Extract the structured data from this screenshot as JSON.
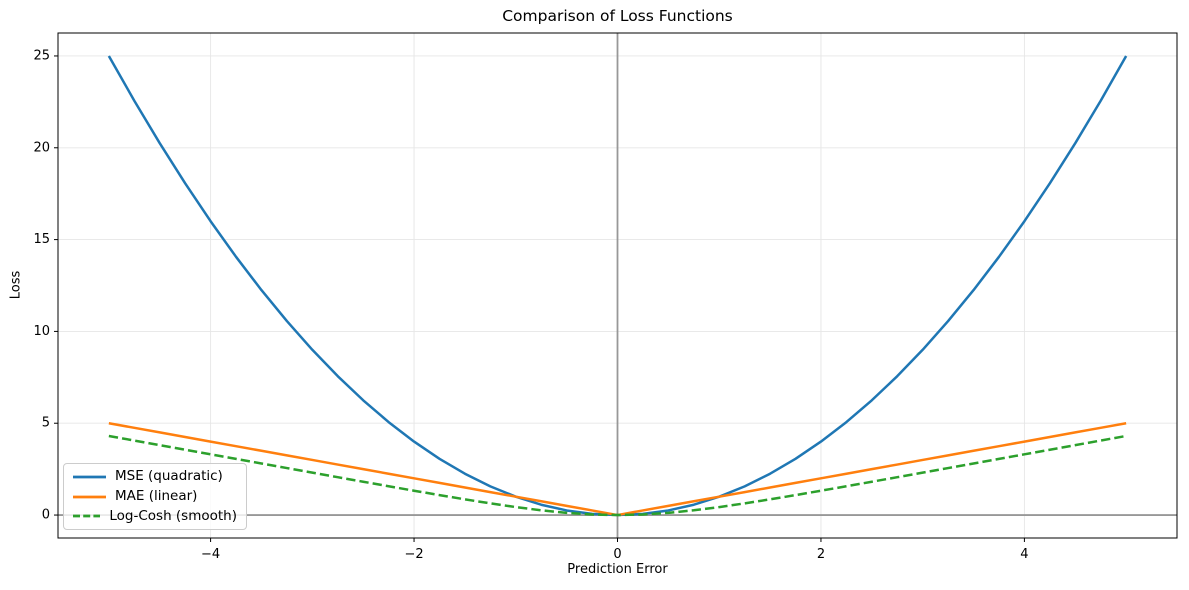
{
  "chart_data": {
    "type": "line",
    "title": "Comparison of Loss Functions",
    "xlabel": "Prediction Error",
    "ylabel": "Loss",
    "xlim": [
      -5.5,
      5.5
    ],
    "ylim": [
      -1.25,
      26.25
    ],
    "xticks": [
      -4,
      -2,
      0,
      2,
      4
    ],
    "yticks": [
      0,
      5,
      10,
      15,
      20,
      25
    ],
    "grid": true,
    "grid_color": "#e6e6e6",
    "axis_color": "#000000",
    "reference_line_color": "#989898",
    "reference_lines": {
      "horizontal_y": 0,
      "vertical_x": 0
    },
    "legend_position": "lower-left",
    "x": [
      -5,
      -4.75,
      -4.5,
      -4.25,
      -4,
      -3.75,
      -3.5,
      -3.25,
      -3,
      -2.75,
      -2.5,
      -2.25,
      -2,
      -1.75,
      -1.5,
      -1.25,
      -1,
      -0.75,
      -0.5,
      -0.25,
      0,
      0.25,
      0.5,
      0.75,
      1,
      1.25,
      1.5,
      1.75,
      2,
      2.25,
      2.5,
      2.75,
      3,
      3.25,
      3.5,
      3.75,
      4,
      4.25,
      4.5,
      4.75,
      5
    ],
    "series": [
      {
        "name": "MSE (quadratic)",
        "color": "#1f77b4",
        "dash": "solid",
        "linewidth": 2.5,
        "values": [
          25,
          22.5625,
          20.25,
          18.0625,
          16,
          14.0625,
          12.25,
          10.5625,
          9,
          7.5625,
          6.25,
          5.0625,
          4,
          3.0625,
          2.25,
          1.5625,
          1,
          0.5625,
          0.25,
          0.0625,
          0,
          0.0625,
          0.25,
          0.5625,
          1,
          1.5625,
          2.25,
          3.0625,
          4,
          5.0625,
          6.25,
          7.5625,
          9,
          10.5625,
          12.25,
          14.0625,
          16,
          18.0625,
          20.25,
          22.5625,
          25
        ]
      },
      {
        "name": "MAE (linear)",
        "color": "#ff7f0e",
        "dash": "solid",
        "linewidth": 2.5,
        "values": [
          5,
          4.75,
          4.5,
          4.25,
          4,
          3.75,
          3.5,
          3.25,
          3,
          2.75,
          2.5,
          2.25,
          2,
          1.75,
          1.5,
          1.25,
          1,
          0.75,
          0.5,
          0.25,
          0,
          0.25,
          0.5,
          0.75,
          1,
          1.25,
          1.5,
          1.75,
          2,
          2.25,
          2.5,
          2.75,
          3,
          3.25,
          3.5,
          3.75,
          4,
          4.25,
          4.5,
          4.75,
          5
        ]
      },
      {
        "name": "Log-Cosh (smooth)",
        "color": "#2ca02c",
        "dash": "dashed",
        "linewidth": 2.5,
        "values": [
          4.3069,
          4.057,
          3.807,
          3.5572,
          3.3071,
          3.0572,
          2.8077,
          2.5584,
          2.3093,
          2.061,
          1.8134,
          1.5679,
          1.325,
          1.0866,
          0.8555,
          0.6358,
          0.4338,
          0.2583,
          0.1201,
          0.0309,
          0,
          0.0309,
          0.1201,
          0.2583,
          0.4338,
          0.6358,
          0.8555,
          1.0866,
          1.325,
          1.5679,
          1.8134,
          2.061,
          2.3093,
          2.5584,
          2.8077,
          3.0572,
          3.3071,
          3.5572,
          3.807,
          4.057,
          4.3069
        ]
      }
    ]
  }
}
